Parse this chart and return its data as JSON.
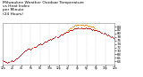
{
  "title": "Milwaukee Weather Outdoor Temperature\nvs Heat Index\nper Minute\n(24 Hours)",
  "title_fontsize": 3.2,
  "title_color": "#000000",
  "bg_color": "#ffffff",
  "plot_bg_color": "#ffffff",
  "grid_color": "#aaaaaa",
  "x_min": 0,
  "x_max": 1440,
  "y_min": 62,
  "y_max": 86,
  "y_ticks": [
    64,
    66,
    68,
    70,
    72,
    74,
    76,
    78,
    80,
    82,
    84
  ],
  "y_tick_labels": [
    "64",
    "66",
    "68",
    "70",
    "72",
    "74",
    "76",
    "78",
    "80",
    "82",
    "84"
  ],
  "x_tick_positions": [
    0,
    120,
    240,
    360,
    480,
    600,
    720,
    840,
    960,
    1080,
    1200,
    1320,
    1440
  ],
  "x_tick_labels": [
    "12a",
    "2a",
    "4a",
    "6a",
    "8a",
    "10a",
    "12p",
    "2p",
    "4p",
    "6p",
    "8p",
    "10p",
    "12a"
  ],
  "series1_color": "#cc0000",
  "series2_color": "#ff8800",
  "series1": [
    [
      0,
      64.5
    ],
    [
      12,
      64.3
    ],
    [
      24,
      64.0
    ],
    [
      36,
      63.8
    ],
    [
      48,
      63.5
    ],
    [
      60,
      63.2
    ],
    [
      72,
      63.5
    ],
    [
      84,
      63.8
    ],
    [
      96,
      64.2
    ],
    [
      108,
      64.5
    ],
    [
      120,
      64.3
    ],
    [
      132,
      64.1
    ],
    [
      144,
      64.6
    ],
    [
      156,
      65.0
    ],
    [
      168,
      65.5
    ],
    [
      180,
      65.8
    ],
    [
      192,
      66.2
    ],
    [
      204,
      66.8
    ],
    [
      216,
      67.2
    ],
    [
      228,
      67.5
    ],
    [
      240,
      68.0
    ],
    [
      252,
      68.5
    ],
    [
      264,
      69.0
    ],
    [
      276,
      69.5
    ],
    [
      288,
      70.0
    ],
    [
      300,
      70.3
    ],
    [
      312,
      70.6
    ],
    [
      324,
      71.0
    ],
    [
      336,
      71.3
    ],
    [
      348,
      71.0
    ],
    [
      360,
      70.8
    ],
    [
      372,
      71.2
    ],
    [
      384,
      71.8
    ],
    [
      396,
      72.2
    ],
    [
      408,
      72.5
    ],
    [
      420,
      72.2
    ],
    [
      432,
      72.8
    ],
    [
      444,
      73.2
    ],
    [
      456,
      73.6
    ],
    [
      468,
      74.0
    ],
    [
      480,
      74.2
    ],
    [
      492,
      74.0
    ],
    [
      504,
      73.8
    ],
    [
      516,
      74.3
    ],
    [
      528,
      74.8
    ],
    [
      540,
      75.2
    ],
    [
      552,
      75.5
    ],
    [
      564,
      75.2
    ],
    [
      576,
      75.8
    ],
    [
      588,
      76.2
    ],
    [
      600,
      76.5
    ],
    [
      612,
      76.8
    ],
    [
      624,
      76.5
    ],
    [
      636,
      77.0
    ],
    [
      648,
      77.5
    ],
    [
      660,
      77.2
    ],
    [
      672,
      77.8
    ],
    [
      684,
      78.2
    ],
    [
      696,
      78.0
    ],
    [
      708,
      77.8
    ],
    [
      720,
      78.2
    ],
    [
      732,
      78.8
    ],
    [
      744,
      79.2
    ],
    [
      756,
      79.5
    ],
    [
      768,
      79.2
    ],
    [
      780,
      79.8
    ],
    [
      792,
      80.2
    ],
    [
      804,
      80.5
    ],
    [
      816,
      80.8
    ],
    [
      828,
      81.0
    ],
    [
      840,
      80.8
    ],
    [
      852,
      81.2
    ],
    [
      864,
      81.8
    ],
    [
      876,
      82.0
    ],
    [
      888,
      81.8
    ],
    [
      900,
      82.2
    ],
    [
      912,
      82.5
    ],
    [
      924,
      82.8
    ],
    [
      936,
      83.0
    ],
    [
      948,
      82.8
    ],
    [
      960,
      83.2
    ],
    [
      972,
      83.5
    ],
    [
      984,
      83.2
    ],
    [
      996,
      83.0
    ],
    [
      1008,
      83.5
    ],
    [
      1020,
      83.2
    ],
    [
      1032,
      83.0
    ],
    [
      1044,
      82.8
    ],
    [
      1056,
      83.2
    ],
    [
      1068,
      83.5
    ],
    [
      1080,
      83.2
    ],
    [
      1092,
      83.0
    ],
    [
      1104,
      82.8
    ],
    [
      1116,
      83.2
    ],
    [
      1128,
      82.8
    ],
    [
      1140,
      82.5
    ],
    [
      1152,
      82.2
    ],
    [
      1164,
      82.5
    ],
    [
      1176,
      82.2
    ],
    [
      1188,
      81.8
    ],
    [
      1200,
      82.0
    ],
    [
      1212,
      81.8
    ],
    [
      1224,
      81.5
    ],
    [
      1236,
      81.2
    ],
    [
      1248,
      81.5
    ],
    [
      1260,
      81.0
    ],
    [
      1272,
      80.5
    ],
    [
      1284,
      80.2
    ],
    [
      1296,
      79.8
    ],
    [
      1308,
      80.2
    ],
    [
      1320,
      79.8
    ],
    [
      1332,
      79.5
    ],
    [
      1344,
      79.0
    ],
    [
      1356,
      79.5
    ],
    [
      1368,
      79.0
    ],
    [
      1380,
      78.5
    ],
    [
      1392,
      78.0
    ],
    [
      1404,
      78.5
    ],
    [
      1416,
      78.0
    ],
    [
      1428,
      77.5
    ],
    [
      1440,
      77.0
    ]
  ],
  "series2": [
    [
      840,
      82.0
    ],
    [
      852,
      82.5
    ],
    [
      864,
      83.0
    ],
    [
      876,
      83.5
    ],
    [
      888,
      83.2
    ],
    [
      900,
      83.8
    ],
    [
      912,
      84.2
    ],
    [
      924,
      84.5
    ],
    [
      936,
      84.8
    ],
    [
      948,
      84.5
    ],
    [
      960,
      85.0
    ],
    [
      972,
      85.2
    ],
    [
      984,
      85.0
    ],
    [
      996,
      84.8
    ],
    [
      1008,
      85.2
    ],
    [
      1020,
      85.0
    ],
    [
      1032,
      84.8
    ],
    [
      1044,
      84.5
    ],
    [
      1056,
      84.8
    ],
    [
      1068,
      85.0
    ],
    [
      1080,
      84.8
    ],
    [
      1092,
      84.5
    ],
    [
      1104,
      84.2
    ],
    [
      1116,
      84.5
    ],
    [
      1128,
      84.2
    ],
    [
      1140,
      83.8
    ],
    [
      1152,
      84.0
    ],
    [
      1164,
      83.8
    ],
    [
      1176,
      83.5
    ],
    [
      1188,
      83.2
    ]
  ]
}
